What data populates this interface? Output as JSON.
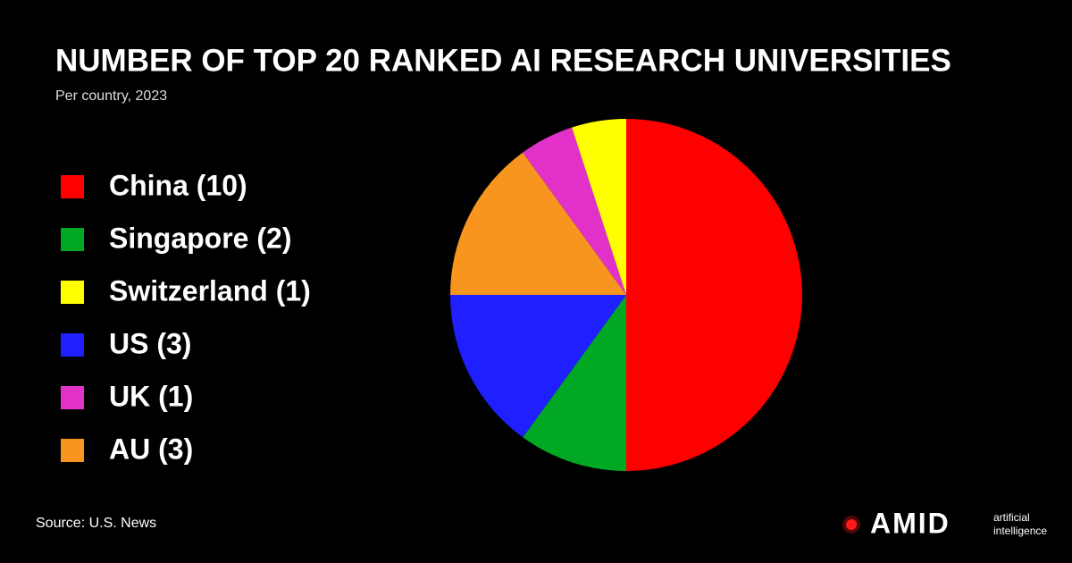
{
  "chart_data": {
    "type": "pie",
    "title": "NUMBER OF TOP 20 RANKED AI RESEARCH UNIVERSITIES",
    "subtitle": "Per country, 2023",
    "categories": [
      "China (10)",
      "Singapore (2)",
      "Switzerland (1)",
      "US (3)",
      "UK (1)",
      "AU (3)"
    ],
    "values": [
      10,
      2,
      1,
      3,
      1,
      3
    ],
    "colors": [
      "#ff0000",
      "#00a823",
      "#ffff00",
      "#1f1fff",
      "#e231c8",
      "#f7951f"
    ],
    "source": "Source: U.S. News"
  },
  "brand": {
    "name": "AMID",
    "tagline_1": "artificial",
    "tagline_2": "intelligence"
  }
}
